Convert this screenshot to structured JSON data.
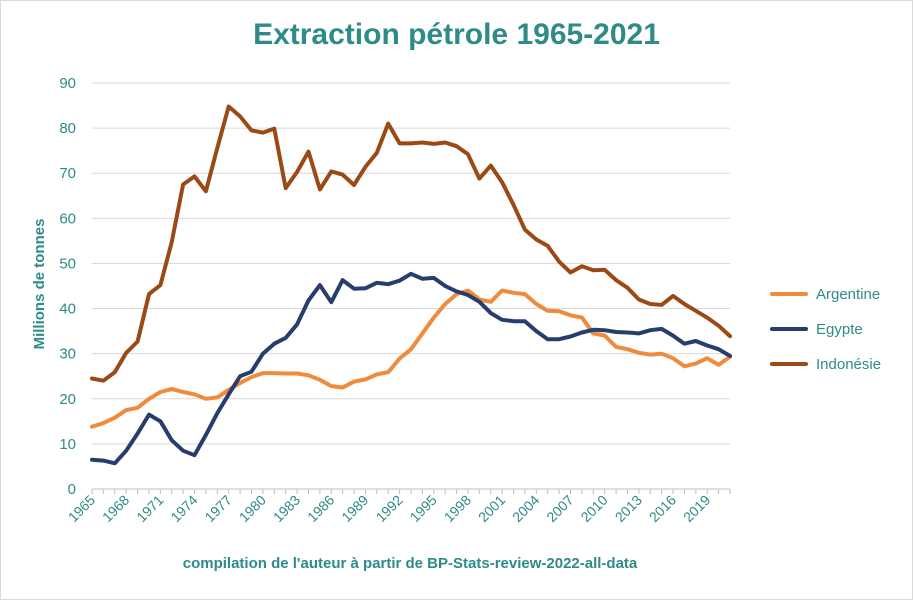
{
  "chart_data": {
    "type": "line",
    "title": "Extraction pétrole 1965-2021",
    "ylabel": "Millions de tonnes",
    "xlabel": "compilation de l'auteur à partir de BP-Stats-review-2022-all-data",
    "ylim": [
      0,
      90
    ],
    "yticks": [
      0,
      10,
      20,
      30,
      40,
      50,
      60,
      70,
      80,
      90
    ],
    "x": [
      1965,
      1966,
      1967,
      1968,
      1969,
      1970,
      1971,
      1972,
      1973,
      1974,
      1975,
      1976,
      1977,
      1978,
      1979,
      1980,
      1981,
      1982,
      1983,
      1984,
      1985,
      1986,
      1987,
      1988,
      1989,
      1990,
      1991,
      1992,
      1993,
      1994,
      1995,
      1996,
      1997,
      1998,
      1999,
      2000,
      2001,
      2002,
      2003,
      2004,
      2005,
      2006,
      2007,
      2008,
      2009,
      2010,
      2011,
      2012,
      2013,
      2014,
      2015,
      2016,
      2017,
      2018,
      2019,
      2020,
      2021
    ],
    "xticks": [
      "1965",
      "1968",
      "1971",
      "1974",
      "1977",
      "1980",
      "1983",
      "1986",
      "1989",
      "1992",
      "1995",
      "1998",
      "2001",
      "2004",
      "2007",
      "2010",
      "2013",
      "2016",
      "2019"
    ],
    "grid": true,
    "legend_position": "right",
    "series": [
      {
        "name": "Argentine",
        "color": "#f08a3c",
        "values": [
          13.8,
          14.6,
          15.8,
          17.5,
          18.0,
          20.0,
          21.5,
          22.2,
          21.5,
          21.0,
          20.0,
          20.3,
          22.0,
          23.5,
          24.8,
          25.7,
          25.7,
          25.6,
          25.6,
          25.2,
          24.2,
          22.8,
          22.5,
          23.8,
          24.3,
          25.4,
          25.9,
          28.9,
          31.0,
          34.5,
          38.0,
          41.0,
          43.2,
          44.0,
          42.0,
          41.5,
          44.0,
          43.5,
          43.2,
          41.0,
          39.5,
          39.4,
          38.5,
          38.0,
          34.5,
          34.0,
          31.5,
          31.0,
          30.2,
          29.8,
          30.0,
          29.0,
          27.2,
          27.8,
          29.0,
          27.5,
          29.3
        ]
      },
      {
        "name": "Egypte",
        "color": "#263d6e",
        "values": [
          6.5,
          6.3,
          5.7,
          8.5,
          12.3,
          16.5,
          15.0,
          10.8,
          8.5,
          7.5,
          12.0,
          16.8,
          21.0,
          25.0,
          26.0,
          30.0,
          32.2,
          33.5,
          36.5,
          41.8,
          45.2,
          41.4,
          46.3,
          44.4,
          44.5,
          45.7,
          45.4,
          46.2,
          47.7,
          46.6,
          46.8,
          45.0,
          43.8,
          43.0,
          41.5,
          39.0,
          37.5,
          37.2,
          37.2,
          35.0,
          33.2,
          33.2,
          33.8,
          34.7,
          35.3,
          35.2,
          34.8,
          34.7,
          34.5,
          35.2,
          35.5,
          34.0,
          32.2,
          32.8,
          31.8,
          31.0,
          29.5
        ]
      },
      {
        "name": "Indonésie",
        "color": "#9b4a16",
        "values": [
          24.5,
          24.0,
          25.9,
          30.2,
          32.7,
          43.2,
          45.2,
          54.8,
          67.5,
          69.3,
          66.0,
          75.6,
          84.8,
          82.6,
          79.5,
          79.0,
          79.9,
          66.7,
          70.3,
          74.8,
          66.4,
          70.4,
          69.7,
          67.4,
          71.4,
          74.5,
          81.0,
          76.6,
          76.6,
          76.8,
          76.5,
          76.8,
          76.0,
          74.2,
          68.8,
          71.7,
          68.0,
          63.0,
          57.5,
          55.3,
          53.9,
          50.4,
          48.0,
          49.4,
          48.5,
          48.6,
          46.3,
          44.6,
          42.0,
          41.0,
          40.8,
          42.8,
          41.0,
          39.5,
          38.0,
          36.2,
          33.9
        ]
      }
    ]
  }
}
